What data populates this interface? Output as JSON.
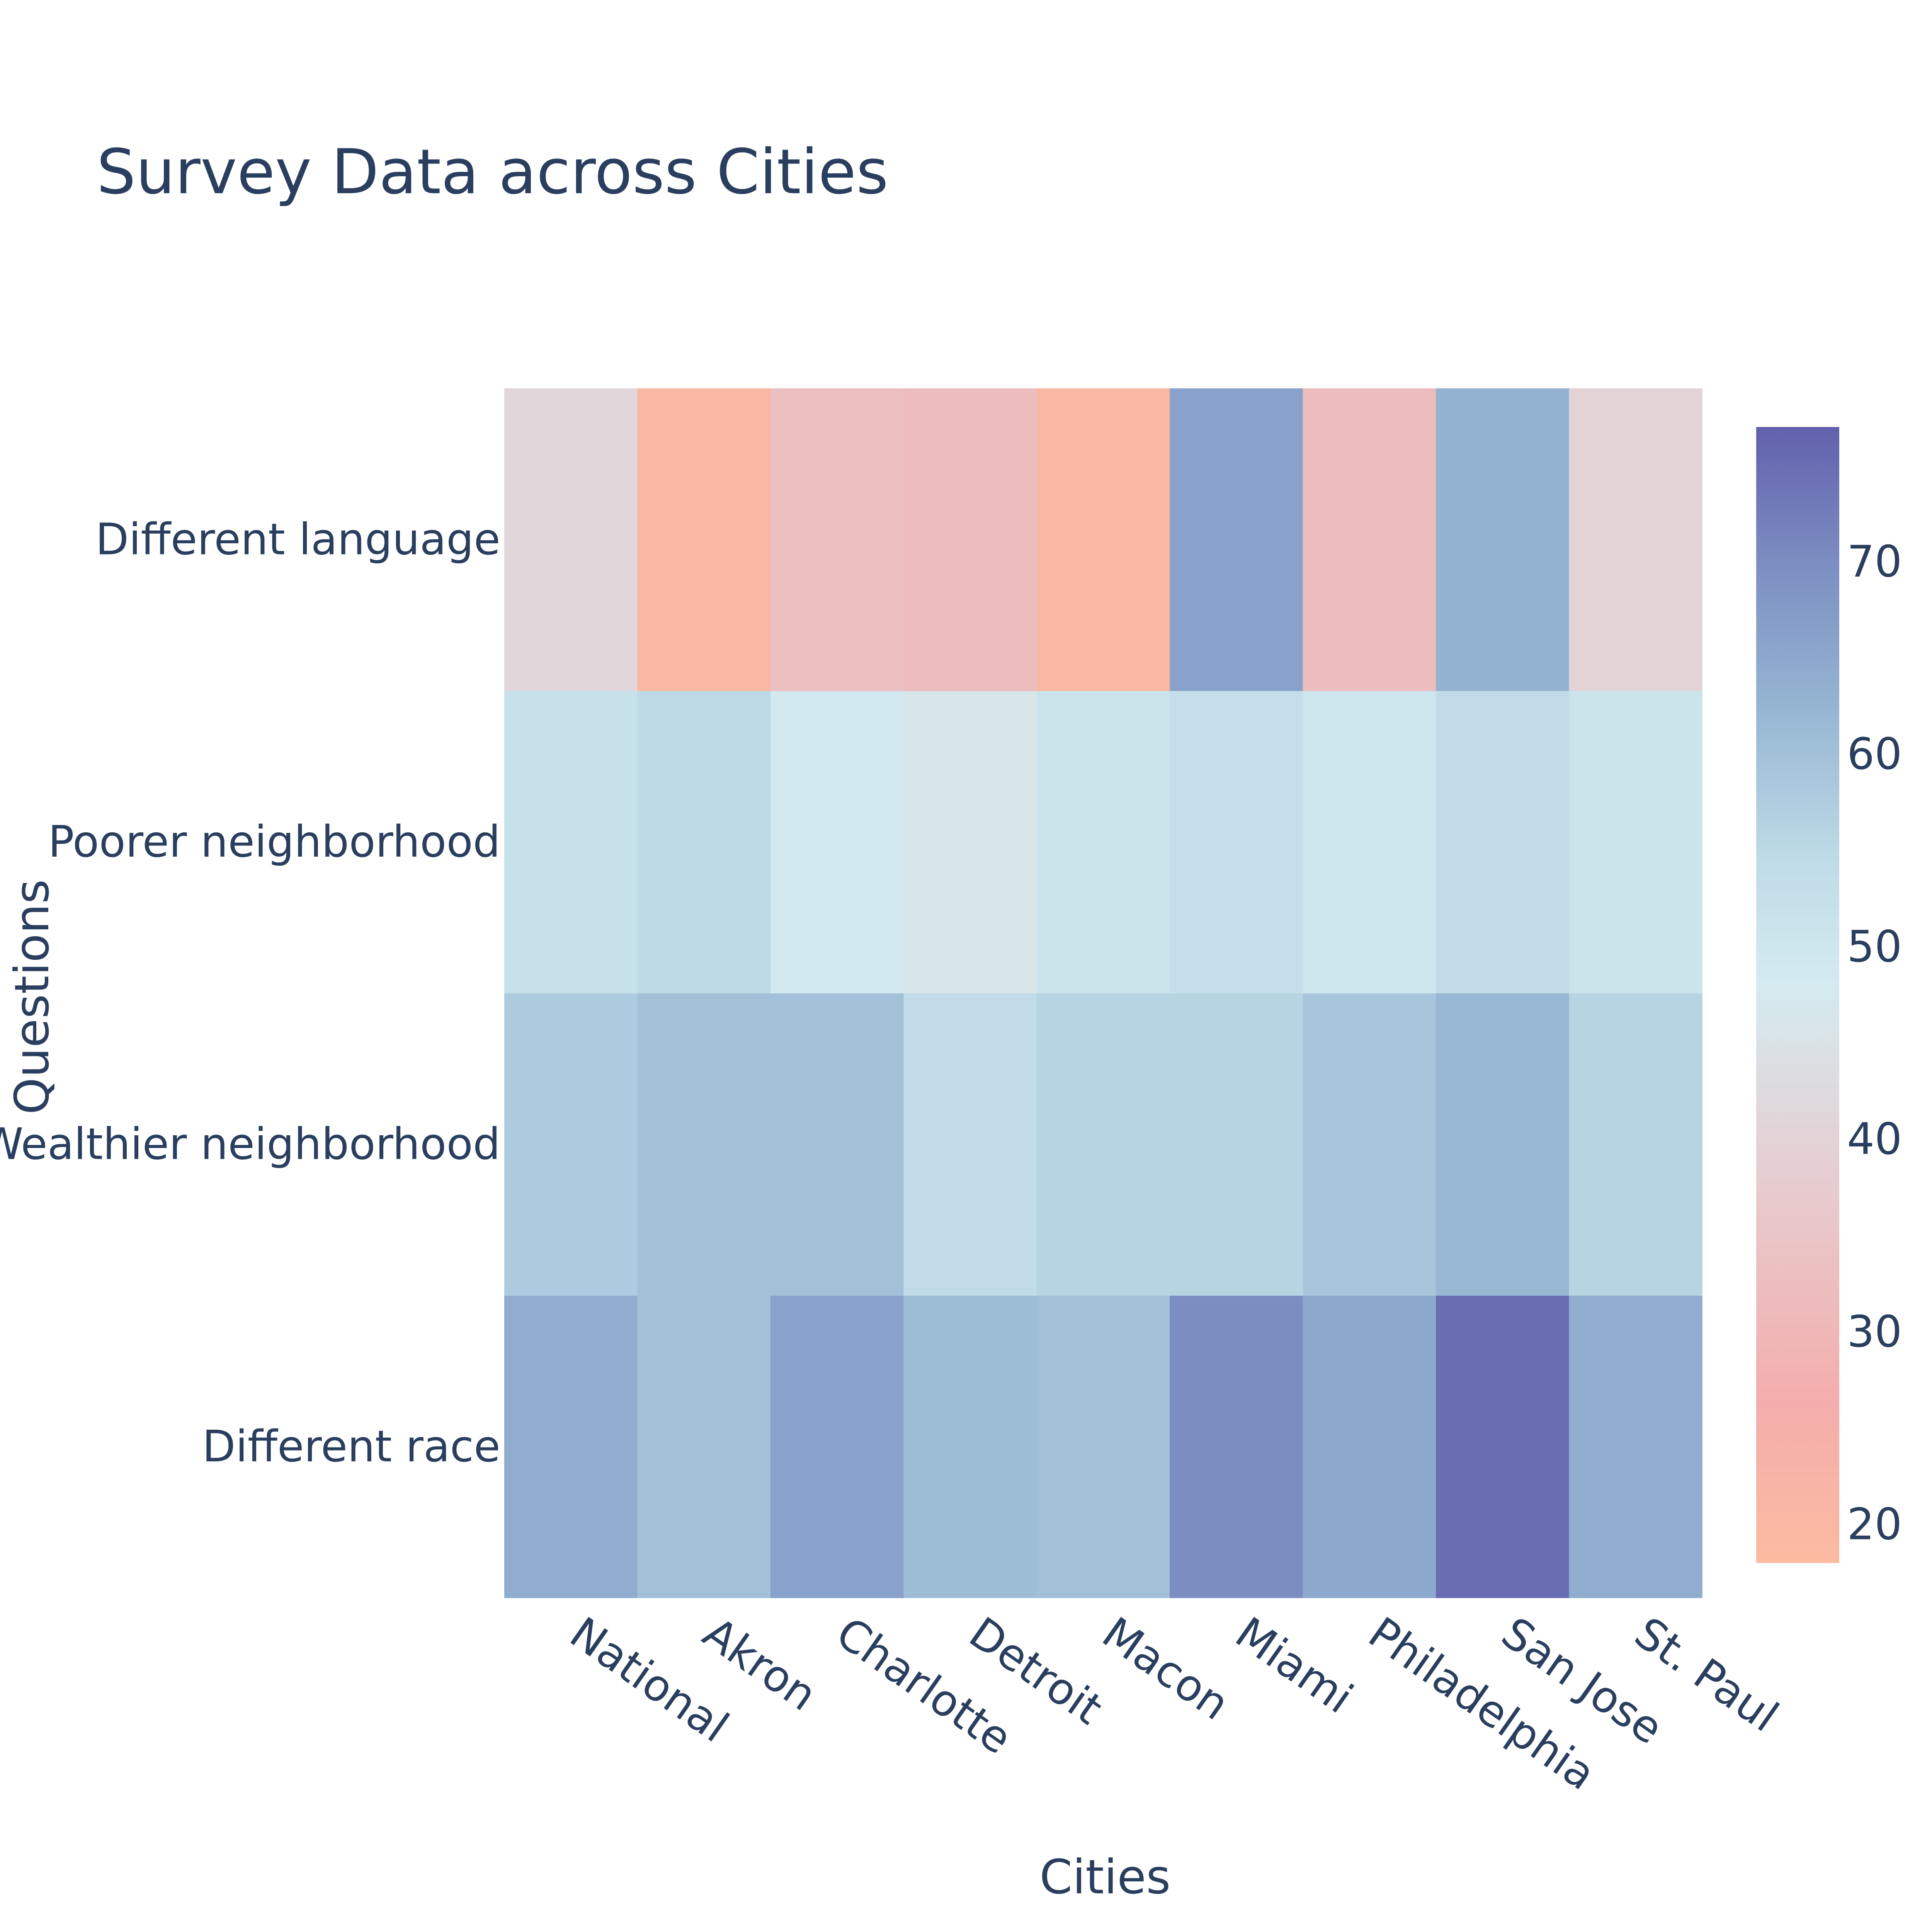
{
  "chart_data": {
    "type": "heatmap",
    "title": "Survey Data across Cities",
    "xlabel": "Cities",
    "ylabel": "Questions",
    "x": [
      "National",
      "Akron",
      "Charlotte",
      "Detroit",
      "Macon",
      "Miami",
      "Philadelphia",
      "San Jose",
      "St. Paul"
    ],
    "y": [
      "Different race",
      "Wealthier neighborhood",
      "Poorer neighborhood",
      "Different language"
    ],
    "z": [
      [
        64,
        60,
        66,
        61,
        60,
        70,
        65,
        75,
        64
      ],
      [
        58,
        60,
        60,
        54,
        56,
        56,
        59,
        62,
        56
      ],
      [
        52,
        55,
        49,
        46,
        51,
        53,
        50,
        54,
        51
      ],
      [
        41,
        20,
        33,
        32,
        20,
        66,
        32,
        63,
        40
      ]
    ],
    "zrange": [
      18,
      77
    ],
    "colorbar": {
      "ticks": [
        20,
        30,
        40,
        50,
        60,
        70
      ],
      "colorscale": [
        "#fcbba1",
        "#f4adac",
        "#e6cdd0",
        "#d4ebf0",
        "#bfdbe7",
        "#96b6d3",
        "#7c8ec2",
        "#6260ac"
      ]
    }
  }
}
